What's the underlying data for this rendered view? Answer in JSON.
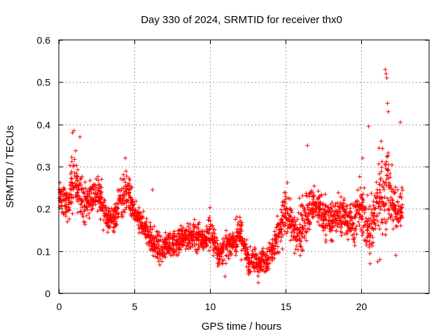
{
  "chart_data": {
    "type": "scatter",
    "title": "Day 330 of 2024, SRMTID for receiver thx0",
    "xlabel": "GPS time / hours",
    "ylabel": "SRMTID / TECUs",
    "xlim": [
      0,
      24.5
    ],
    "ylim": [
      0,
      0.6
    ],
    "xticks": [
      0,
      5,
      10,
      15,
      20
    ],
    "xtick_labels": [
      "0",
      "5",
      "10",
      "15",
      "20"
    ],
    "yticks": [
      0,
      0.1,
      0.2,
      0.3,
      0.4,
      0.5,
      0.6
    ],
    "ytick_labels": [
      "0",
      "0.1",
      "0.2",
      "0.3",
      "0.4",
      "0.5",
      "0.6"
    ],
    "grid": true,
    "marker": "plus",
    "color": "#ff0000",
    "series": [
      {
        "name": "SRMTID",
        "x": [
          0.0,
          0.25,
          0.5,
          0.75,
          1.0,
          1.25,
          1.5,
          1.75,
          2.0,
          2.25,
          2.5,
          2.75,
          3.0,
          3.25,
          3.5,
          3.75,
          4.0,
          4.25,
          4.5,
          4.75,
          5.0,
          5.25,
          5.5,
          5.75,
          6.0,
          6.25,
          6.5,
          6.75,
          7.0,
          7.25,
          7.5,
          7.75,
          8.0,
          8.25,
          8.5,
          8.75,
          9.0,
          9.25,
          9.5,
          9.75,
          10.0,
          10.25,
          10.5,
          10.75,
          11.0,
          11.25,
          11.5,
          11.75,
          12.0,
          12.25,
          12.5,
          12.75,
          13.0,
          13.25,
          13.5,
          13.75,
          14.0,
          14.25,
          14.5,
          14.75,
          15.0,
          15.25,
          15.5,
          15.75,
          16.0,
          16.25,
          16.5,
          16.75,
          17.0,
          17.25,
          17.5,
          17.75,
          18.0,
          18.25,
          18.5,
          18.75,
          19.0,
          19.25,
          19.5,
          19.75,
          20.0,
          20.25,
          20.5,
          20.75,
          21.0,
          21.25,
          21.5,
          21.75,
          22.0,
          22.25,
          22.5,
          22.75
        ],
        "y": [
          0.23,
          0.22,
          0.21,
          0.24,
          0.27,
          0.25,
          0.23,
          0.215,
          0.22,
          0.235,
          0.245,
          0.225,
          0.19,
          0.18,
          0.175,
          0.185,
          0.21,
          0.23,
          0.24,
          0.215,
          0.19,
          0.175,
          0.165,
          0.15,
          0.14,
          0.12,
          0.11,
          0.1,
          0.11,
          0.12,
          0.115,
          0.12,
          0.125,
          0.135,
          0.14,
          0.13,
          0.14,
          0.135,
          0.125,
          0.13,
          0.15,
          0.125,
          0.1,
          0.095,
          0.105,
          0.115,
          0.12,
          0.13,
          0.14,
          0.12,
          0.08,
          0.075,
          0.085,
          0.07,
          0.08,
          0.075,
          0.09,
          0.11,
          0.13,
          0.16,
          0.2,
          0.18,
          0.15,
          0.13,
          0.16,
          0.18,
          0.19,
          0.205,
          0.21,
          0.2,
          0.19,
          0.175,
          0.17,
          0.18,
          0.185,
          0.18,
          0.185,
          0.175,
          0.165,
          0.19,
          0.2,
          0.18,
          0.15,
          0.16,
          0.2,
          0.25,
          0.24,
          0.26,
          0.23,
          0.2,
          0.19,
          0.2
        ],
        "spread": [
          0.03,
          0.04,
          0.04,
          0.06,
          0.08,
          0.06,
          0.05,
          0.05,
          0.04,
          0.05,
          0.05,
          0.05,
          0.04,
          0.03,
          0.03,
          0.04,
          0.05,
          0.05,
          0.06,
          0.04,
          0.03,
          0.03,
          0.03,
          0.03,
          0.04,
          0.04,
          0.04,
          0.03,
          0.03,
          0.03,
          0.03,
          0.03,
          0.03,
          0.03,
          0.04,
          0.04,
          0.05,
          0.04,
          0.03,
          0.03,
          0.05,
          0.04,
          0.04,
          0.03,
          0.03,
          0.03,
          0.03,
          0.04,
          0.05,
          0.04,
          0.03,
          0.03,
          0.03,
          0.03,
          0.03,
          0.03,
          0.04,
          0.04,
          0.05,
          0.05,
          0.06,
          0.05,
          0.05,
          0.05,
          0.06,
          0.07,
          0.06,
          0.05,
          0.05,
          0.05,
          0.05,
          0.05,
          0.05,
          0.05,
          0.05,
          0.05,
          0.05,
          0.05,
          0.05,
          0.05,
          0.07,
          0.07,
          0.06,
          0.06,
          0.08,
          0.12,
          0.1,
          0.12,
          0.08,
          0.06,
          0.05,
          0.05
        ],
        "outliers_x": [
          0.9,
          1.0,
          1.4,
          4.4,
          6.2,
          16.45,
          20.1,
          20.5,
          21.1,
          21.25,
          21.6,
          21.65,
          21.7,
          21.75,
          21.8,
          22.3,
          22.6,
          13.2,
          11.0,
          20.6
        ],
        "outliers_y": [
          0.38,
          0.385,
          0.37,
          0.32,
          0.245,
          0.35,
          0.32,
          0.395,
          0.075,
          0.08,
          0.53,
          0.52,
          0.51,
          0.45,
          0.43,
          0.09,
          0.405,
          0.025,
          0.04,
          0.07
        ]
      }
    ]
  }
}
